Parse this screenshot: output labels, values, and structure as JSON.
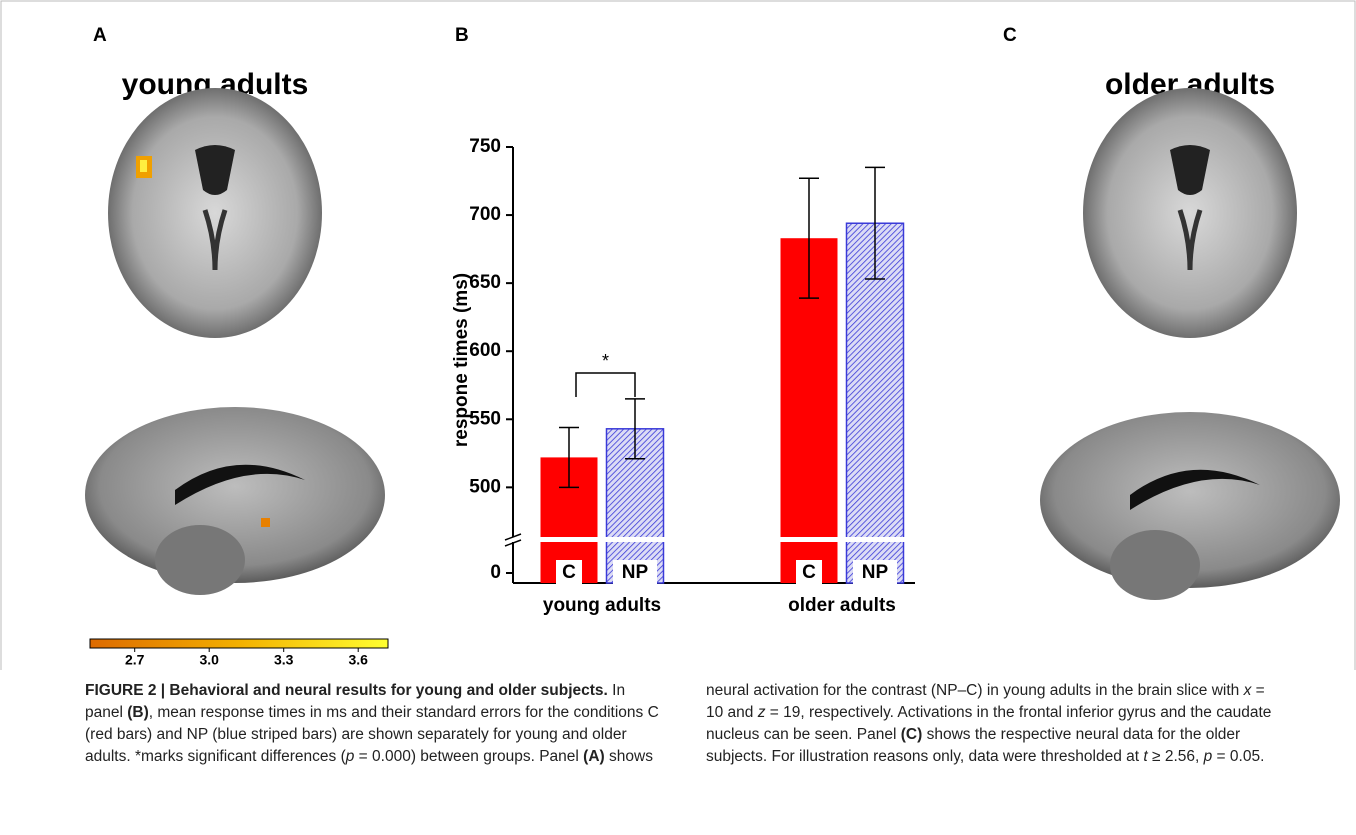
{
  "panels": {
    "a": "A",
    "b": "B",
    "c": "C",
    "young_title": "young adults",
    "older_title": "older adults"
  },
  "colorbar": {
    "range": [
      2.52,
      3.72
    ],
    "ticks": [
      2.7,
      {
        "value": 3,
        "label": "3.0"
      },
      3.3,
      3.6
    ]
  },
  "chart_data": {
    "type": "bar",
    "y_label": "respone times (ms)",
    "categories": [
      "young adults",
      "older adults"
    ],
    "series": [
      {
        "name": "C",
        "color": "#ff0000",
        "values": [
          522,
          683
        ],
        "errors": [
          22,
          44
        ]
      },
      {
        "name": "NP",
        "color": "#3a3ad8",
        "values": [
          543,
          694
        ],
        "errors": [
          22,
          41
        ]
      }
    ],
    "ylim": [
      0,
      750
    ],
    "yticks": [
      0,
      500,
      550,
      600,
      650,
      700,
      750
    ],
    "axis_break": true,
    "annotation": "*"
  },
  "caption": [
    "FIGURE 2 | Behavioral and neural results for young and older subjects.",
    " In panel ",
    "(B)",
    ", mean response times in ms and their standard errors for the conditions C (red bars) and NP (blue striped bars) are shown separately for young and older adults. *marks significant differences (",
    "p",
    " = 0.000) between groups. Panel ",
    "(A)",
    " shows neural activation for the contrast (NP–C) in young adults in the brain slice with ",
    "x",
    " = 10 and ",
    "z",
    " = 19, respectively. Activations in the frontal inferior gyrus and the caudate nucleus can be seen. Panel ",
    "(C)",
    " shows the respective neural data for the older subjects. For illustration reasons only, data were thresholded at ",
    "t",
    " ≥ 2.56, ",
    "p",
    " = 0.05."
  ]
}
